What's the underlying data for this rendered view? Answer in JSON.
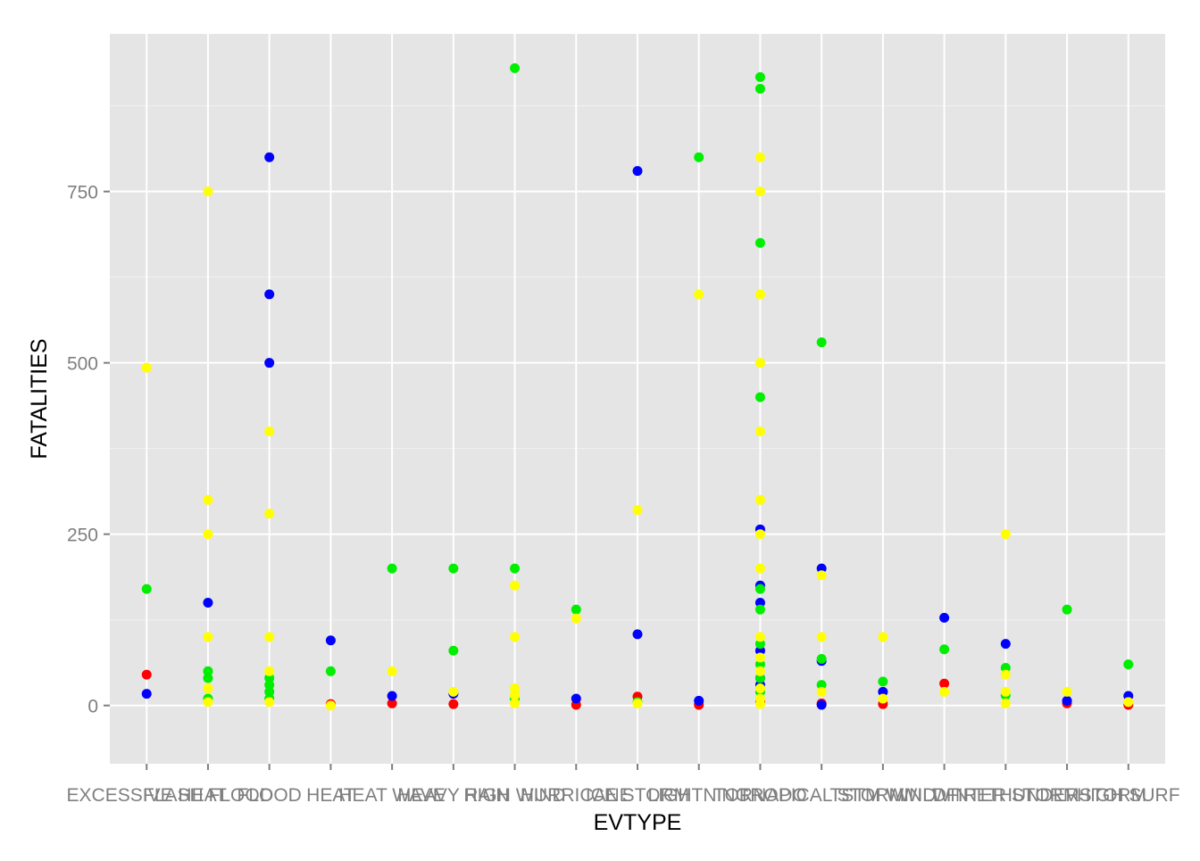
{
  "chart_data": {
    "type": "scatter",
    "title": "",
    "xlabel": "EVTYPE",
    "ylabel": "FATALITIES",
    "grid": true,
    "legend": "none",
    "ylim": [
      -85,
      980
    ],
    "yticks": [
      0,
      250,
      500,
      750
    ],
    "categories": [
      "EXCESSIVE HEAT",
      "FLASH FLOOD",
      "FLOOD",
      "HEAT",
      "HEAT WAVE",
      "HEAVY RAIN",
      "HIGH WIND",
      "HURRICANE",
      "ICE STORM",
      "LIGHTNING",
      "TORNADO",
      "TROPICAL STORM",
      "TSTM WIND",
      "WILDFIRE",
      "WINTER STORM",
      "THUNDERSTORM",
      "HIGH SURF"
    ],
    "series": [
      {
        "color": "#FF0000",
        "points": [
          [
            0,
            45
          ],
          [
            3,
            2
          ],
          [
            4,
            3
          ],
          [
            5,
            2
          ],
          [
            7,
            1
          ],
          [
            8,
            13
          ],
          [
            9,
            1
          ],
          [
            10,
            5
          ],
          [
            11,
            3
          ],
          [
            12,
            2
          ],
          [
            13,
            32
          ],
          [
            15,
            3
          ],
          [
            16,
            1
          ]
        ]
      },
      {
        "color": "#0000FF",
        "points": [
          [
            0,
            17
          ],
          [
            1,
            150
          ],
          [
            2,
            800
          ],
          [
            2,
            600
          ],
          [
            2,
            500
          ],
          [
            3,
            95
          ],
          [
            4,
            14
          ],
          [
            5,
            17
          ],
          [
            7,
            10
          ],
          [
            8,
            780
          ],
          [
            8,
            104
          ],
          [
            9,
            7
          ],
          [
            10,
            257
          ],
          [
            10,
            175
          ],
          [
            10,
            150
          ],
          [
            10,
            80
          ],
          [
            10,
            40
          ],
          [
            10,
            30
          ],
          [
            11,
            200
          ],
          [
            11,
            65
          ],
          [
            11,
            1
          ],
          [
            12,
            20
          ],
          [
            13,
            128
          ],
          [
            14,
            90
          ],
          [
            15,
            7
          ],
          [
            16,
            14
          ]
        ]
      },
      {
        "color": "#00EE00",
        "points": [
          [
            0,
            170
          ],
          [
            1,
            50
          ],
          [
            1,
            40
          ],
          [
            1,
            10
          ],
          [
            2,
            40
          ],
          [
            2,
            30
          ],
          [
            2,
            20
          ],
          [
            2,
            10
          ],
          [
            3,
            50
          ],
          [
            4,
            200
          ],
          [
            5,
            200
          ],
          [
            5,
            80
          ],
          [
            6,
            930
          ],
          [
            6,
            200
          ],
          [
            6,
            10
          ],
          [
            7,
            140
          ],
          [
            8,
            5
          ],
          [
            9,
            800
          ],
          [
            10,
            917
          ],
          [
            10,
            900
          ],
          [
            10,
            675
          ],
          [
            10,
            450
          ],
          [
            10,
            170
          ],
          [
            10,
            140
          ],
          [
            10,
            90
          ],
          [
            10,
            60
          ],
          [
            10,
            40
          ],
          [
            10,
            20
          ],
          [
            11,
            530
          ],
          [
            11,
            68
          ],
          [
            11,
            30
          ],
          [
            12,
            35
          ],
          [
            13,
            82
          ],
          [
            14,
            55
          ],
          [
            14,
            15
          ],
          [
            15,
            140
          ],
          [
            16,
            60
          ]
        ]
      },
      {
        "color": "#FFFF00",
        "points": [
          [
            0,
            493
          ],
          [
            1,
            750
          ],
          [
            1,
            300
          ],
          [
            1,
            250
          ],
          [
            1,
            100
          ],
          [
            1,
            25
          ],
          [
            1,
            5
          ],
          [
            2,
            400
          ],
          [
            2,
            280
          ],
          [
            2,
            100
          ],
          [
            2,
            50
          ],
          [
            2,
            5
          ],
          [
            3,
            0
          ],
          [
            4,
            50
          ],
          [
            5,
            20
          ],
          [
            6,
            175
          ],
          [
            6,
            100
          ],
          [
            6,
            25
          ],
          [
            6,
            15
          ],
          [
            6,
            3
          ],
          [
            7,
            127
          ],
          [
            8,
            285
          ],
          [
            8,
            3
          ],
          [
            9,
            600
          ],
          [
            10,
            800
          ],
          [
            10,
            750
          ],
          [
            10,
            600
          ],
          [
            10,
            500
          ],
          [
            10,
            400
          ],
          [
            10,
            300
          ],
          [
            10,
            250
          ],
          [
            10,
            200
          ],
          [
            10,
            100
          ],
          [
            10,
            70
          ],
          [
            10,
            50
          ],
          [
            10,
            25
          ],
          [
            10,
            10
          ],
          [
            10,
            2
          ],
          [
            11,
            190
          ],
          [
            11,
            100
          ],
          [
            11,
            20
          ],
          [
            12,
            100
          ],
          [
            12,
            10
          ],
          [
            13,
            20
          ],
          [
            14,
            250
          ],
          [
            14,
            45
          ],
          [
            14,
            20
          ],
          [
            14,
            3
          ],
          [
            15,
            20
          ],
          [
            16,
            5
          ]
        ]
      }
    ]
  }
}
